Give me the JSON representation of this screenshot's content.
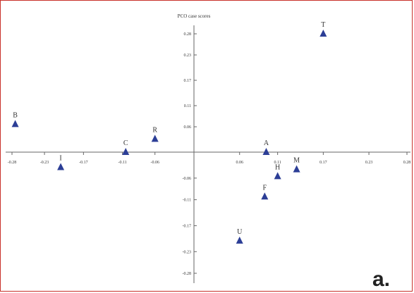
{
  "chart_data": {
    "type": "scatter",
    "title": "PCO case scores",
    "xlabel": "",
    "ylabel": "",
    "xlim": [
      -0.28,
      0.28
    ],
    "ylim": [
      -0.28,
      0.28
    ],
    "x_ticks": [
      "-0.28",
      "-0.23",
      "-0.17",
      "-0.11",
      "-0.06",
      "0.06",
      "0.11",
      "0.17",
      "0.23",
      "0.28"
    ],
    "y_ticks": [
      "0.28",
      "0.23",
      "0.17",
      "0.11",
      "0.06",
      "-0.06",
      "-0.11",
      "-0.17",
      "-0.23",
      "-0.28"
    ],
    "marker": "triangle",
    "marker_color": "#2c3e96",
    "points": [
      {
        "label": "T",
        "x": 0.17,
        "y": 0.28
      },
      {
        "label": "B",
        "x": -0.275,
        "y": 0.066
      },
      {
        "label": "R",
        "x": -0.06,
        "y": 0.031
      },
      {
        "label": "C",
        "x": -0.105,
        "y": 0.0
      },
      {
        "label": "I",
        "x": -0.205,
        "y": -0.035
      },
      {
        "label": "A",
        "x": 0.095,
        "y": 0.0
      },
      {
        "label": "M",
        "x": 0.135,
        "y": -0.04
      },
      {
        "label": "H",
        "x": 0.11,
        "y": -0.056
      },
      {
        "label": "F",
        "x": 0.093,
        "y": -0.103
      },
      {
        "label": "U",
        "x": 0.06,
        "y": -0.205
      }
    ]
  },
  "panel_label": "a."
}
